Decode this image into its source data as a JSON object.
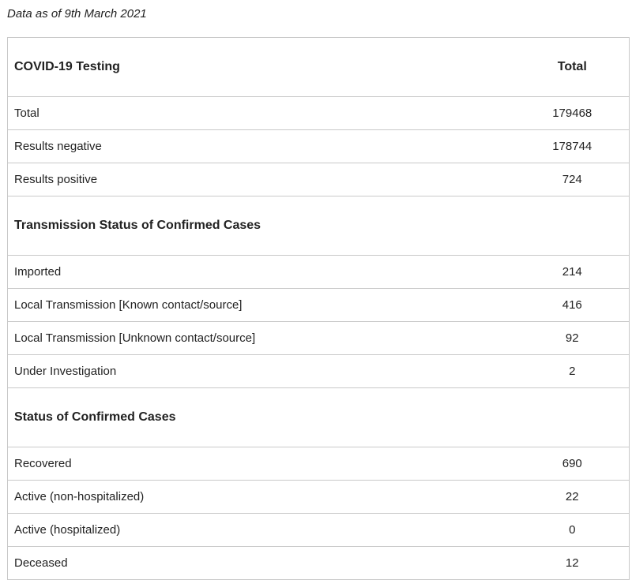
{
  "note": "Data as of 9th March 2021",
  "table": {
    "header": {
      "label": "COVID-19 Testing",
      "value": "Total"
    },
    "testing": [
      {
        "label": "Total",
        "value": "179468"
      },
      {
        "label": "Results negative",
        "value": "178744"
      },
      {
        "label": "Results positive",
        "value": "724"
      }
    ],
    "transmission_title": "Transmission Status of Confirmed Cases",
    "transmission": [
      {
        "label": "Imported",
        "value": "214"
      },
      {
        "label": "Local Transmission [Known contact/source]",
        "value": "416"
      },
      {
        "label": "Local Transmission [Unknown contact/source]",
        "value": "92"
      },
      {
        "label": "Under Investigation",
        "value": "2"
      }
    ],
    "status_title": "Status of Confirmed Cases",
    "status": [
      {
        "label": "Recovered",
        "value": "690"
      },
      {
        "label": "Active (non-hospitalized)",
        "value": "22"
      },
      {
        "label": "Active (hospitalized)",
        "value": "0"
      },
      {
        "label": "Deceased",
        "value": "12"
      }
    ]
  }
}
